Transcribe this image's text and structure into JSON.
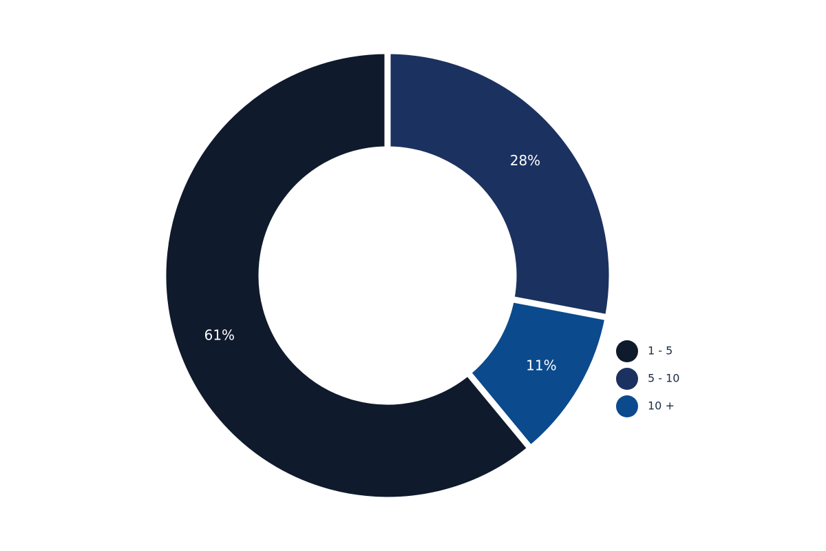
{
  "chart_data": {
    "type": "donut",
    "categories": [
      "1 - 5",
      "5 - 10",
      "10 +"
    ],
    "values": [
      61,
      28,
      11
    ],
    "value_labels": [
      "61%",
      "28%",
      "11%"
    ],
    "colors": [
      "#0f1a2c",
      "#1b3160",
      "#0b4a8c"
    ],
    "legend": "right"
  }
}
